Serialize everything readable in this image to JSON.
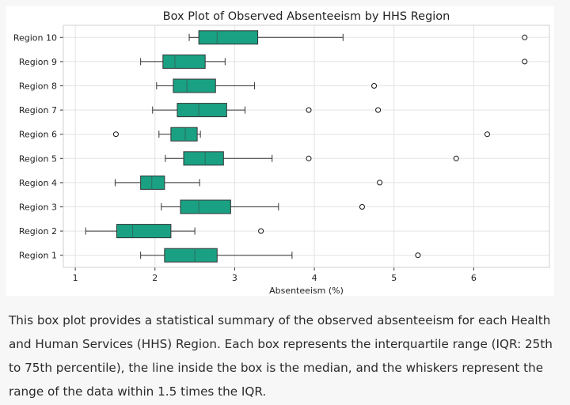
{
  "chart_data": {
    "type": "box",
    "orientation": "horizontal",
    "title": "Box Plot of Observed Absenteeism by HHS Region",
    "xlabel": "Absenteeism (%)",
    "ylabel": "",
    "xlim": [
      0.85,
      6.95
    ],
    "xticks": [
      1,
      2,
      3,
      4,
      5,
      6
    ],
    "grid": true,
    "box_color": "#1aa184",
    "box_edge": "#333333",
    "categories": [
      "Region 1",
      "Region 2",
      "Region 3",
      "Region 4",
      "Region 5",
      "Region 6",
      "Region 7",
      "Region 8",
      "Region 9",
      "Region 10"
    ],
    "boxes": [
      {
        "label": "Region 1",
        "whislo": 1.82,
        "q1": 2.12,
        "med": 2.5,
        "q3": 2.78,
        "whishi": 3.72,
        "fliers": [
          5.3
        ]
      },
      {
        "label": "Region 2",
        "whislo": 1.13,
        "q1": 1.52,
        "med": 1.72,
        "q3": 2.2,
        "whishi": 2.5,
        "fliers": [
          3.33
        ]
      },
      {
        "label": "Region 3",
        "whislo": 2.08,
        "q1": 2.32,
        "med": 2.55,
        "q3": 2.95,
        "whishi": 3.55,
        "fliers": [
          4.6
        ]
      },
      {
        "label": "Region 4",
        "whislo": 1.5,
        "q1": 1.82,
        "med": 1.96,
        "q3": 2.12,
        "whishi": 2.56,
        "fliers": [
          4.82
        ]
      },
      {
        "label": "Region 5",
        "whislo": 2.13,
        "q1": 2.36,
        "med": 2.63,
        "q3": 2.86,
        "whishi": 3.47,
        "fliers": [
          3.93,
          5.78
        ]
      },
      {
        "label": "Region 6",
        "whislo": 2.05,
        "q1": 2.2,
        "med": 2.38,
        "q3": 2.53,
        "whishi": 2.57,
        "fliers": [
          1.51,
          6.17
        ]
      },
      {
        "label": "Region 7",
        "whislo": 1.97,
        "q1": 2.28,
        "med": 2.55,
        "q3": 2.9,
        "whishi": 3.13,
        "fliers": [
          3.93,
          4.8
        ]
      },
      {
        "label": "Region 8",
        "whislo": 2.02,
        "q1": 2.23,
        "med": 2.4,
        "q3": 2.76,
        "whishi": 3.25,
        "fliers": [
          4.75
        ]
      },
      {
        "label": "Region 9",
        "whislo": 1.82,
        "q1": 2.1,
        "med": 2.25,
        "q3": 2.63,
        "whishi": 2.88,
        "fliers": [
          6.64
        ]
      },
      {
        "label": "Region 10",
        "whislo": 2.43,
        "q1": 2.55,
        "med": 2.78,
        "q3": 3.29,
        "whishi": 4.36,
        "fliers": [
          6.64
        ]
      }
    ]
  },
  "caption": "This box plot provides a statistical summary of the observed absenteeism for each Health and Human Services (HHS) Region. Each box represents the interquartile range (IQR: 25th to 75th percentile), the line inside the box is the median, and the whiskers represent the range of the data within 1.5 times the IQR."
}
